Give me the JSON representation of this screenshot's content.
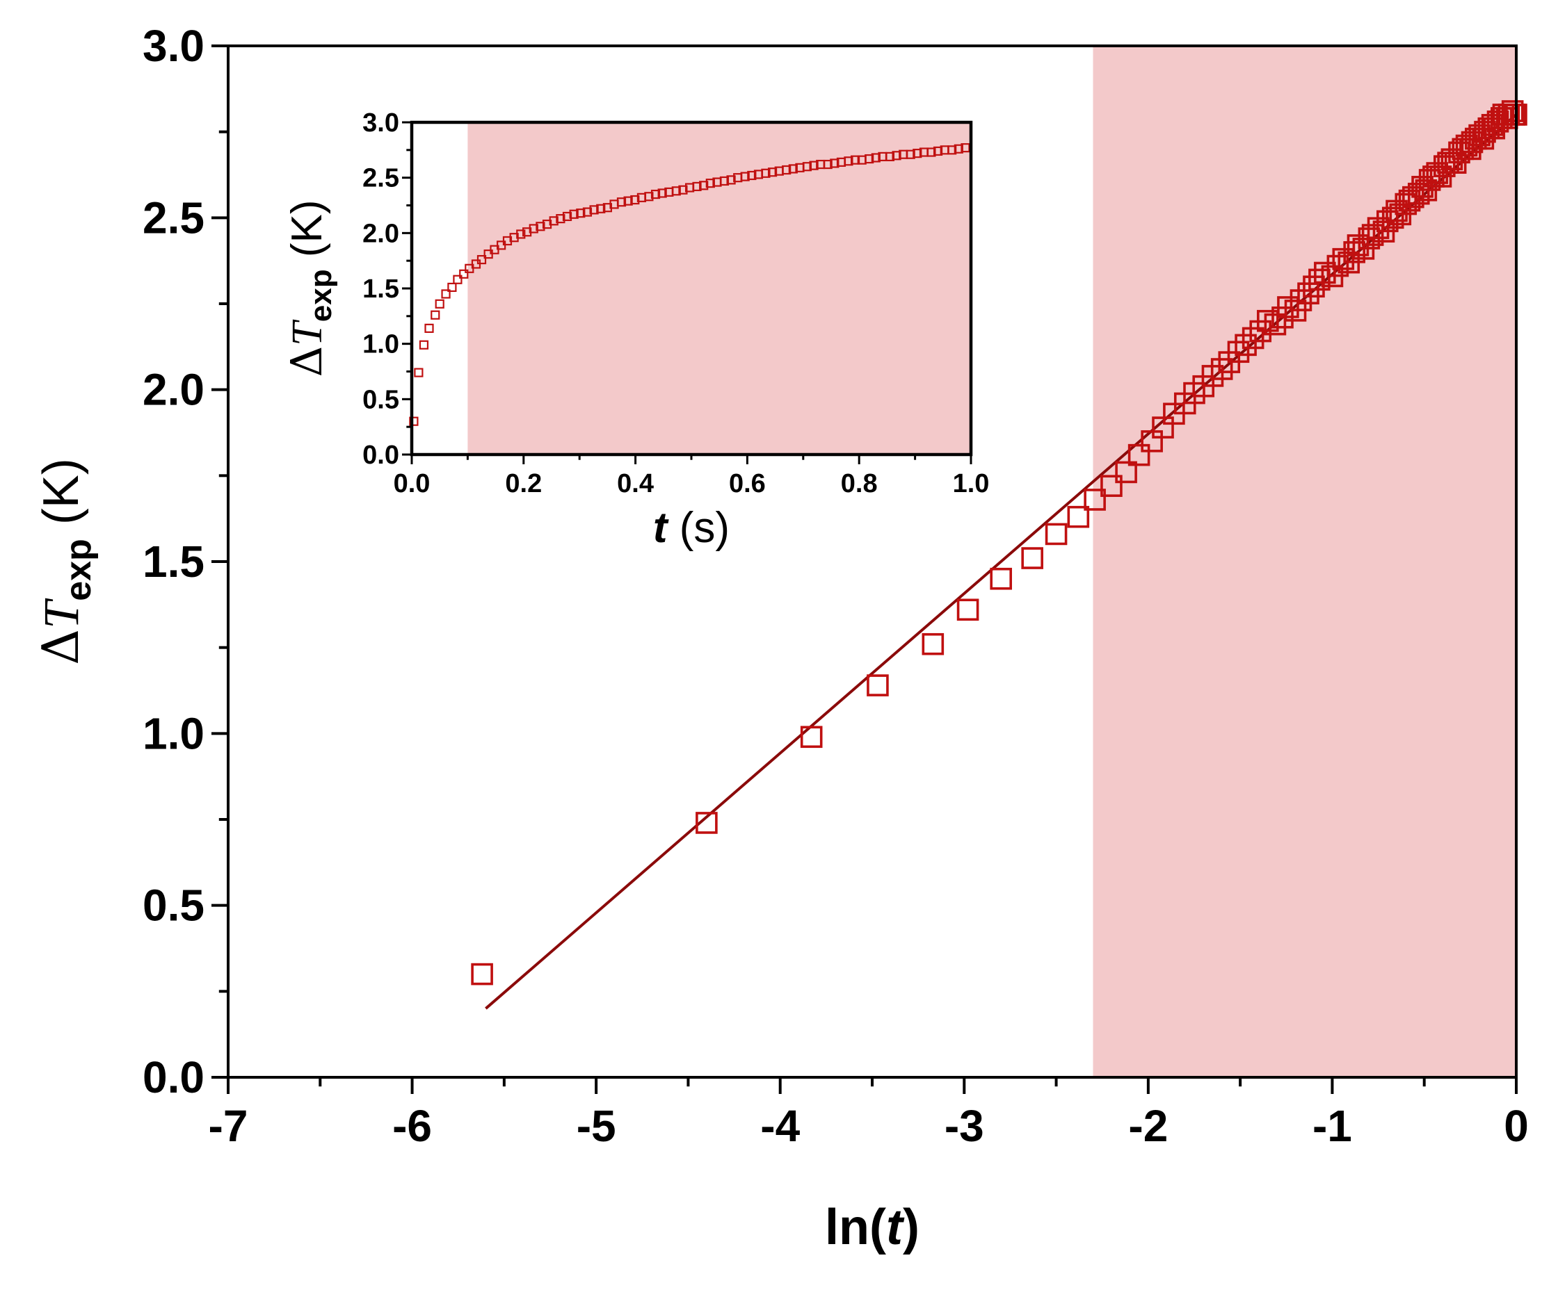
{
  "colors": {
    "marker": "#c01010",
    "fit_line": "#8b0a0a",
    "shade": "#f3c9ca",
    "axis": "#000000"
  },
  "chart_data": [
    {
      "type": "scatter",
      "panel": "main",
      "xlabel": {
        "prefix": "ln(",
        "italic": "t",
        "suffix": ")"
      },
      "ylabel": {
        "symbol": "Δ",
        "italic": "T",
        "subscript": "exp",
        "unit": " (K)"
      },
      "xlim": [
        -7,
        0
      ],
      "ylim": [
        0,
        3.0
      ],
      "xticks": [
        -7,
        -6,
        -5,
        -4,
        -3,
        -2,
        -1,
        0
      ],
      "xtick_labels": [
        "-7",
        "-6",
        "-5",
        "-4",
        "-3",
        "-2",
        "-1",
        "0"
      ],
      "yticks": [
        0,
        0.5,
        1.0,
        1.5,
        2.0,
        2.5,
        3.0
      ],
      "ytick_labels": [
        "0.0",
        "0.5",
        "1.0",
        "1.5",
        "2.0",
        "2.5",
        "3.0"
      ],
      "shaded_region_x": [
        -2.3,
        0
      ],
      "marker": "open-square",
      "x": [
        -5.62,
        -4.4,
        -3.83,
        -3.47,
        -3.17,
        -2.98,
        -2.8,
        -2.63,
        -2.5,
        -2.38,
        -2.29,
        -2.2,
        -2.12,
        -2.05,
        -1.98,
        -1.92,
        -1.86,
        -1.8,
        -1.75,
        -1.7,
        -1.65,
        -1.6,
        -1.56,
        -1.51,
        -1.47,
        -1.43,
        -1.39,
        -1.35,
        -1.31,
        -1.27,
        -1.24,
        -1.2,
        -1.17,
        -1.13,
        -1.1,
        -1.07,
        -1.04,
        -1.0,
        -0.97,
        -0.94,
        -0.91,
        -0.88,
        -0.86,
        -0.83,
        -0.8,
        -0.78,
        -0.75,
        -0.72,
        -0.7,
        -0.67,
        -0.65,
        -0.63,
        -0.6,
        -0.58,
        -0.56,
        -0.53,
        -0.51,
        -0.49,
        -0.47,
        -0.45,
        -0.43,
        -0.41,
        -0.39,
        -0.37,
        -0.35,
        -0.33,
        -0.31,
        -0.29,
        -0.27,
        -0.25,
        -0.24,
        -0.22,
        -0.2,
        -0.18,
        -0.17,
        -0.15,
        -0.13,
        -0.12,
        -0.1,
        -0.08,
        -0.07,
        -0.05,
        -0.04,
        -0.02,
        -0.01,
        0.0
      ],
      "y": [
        0.3,
        0.74,
        0.99,
        1.14,
        1.26,
        1.36,
        1.45,
        1.51,
        1.58,
        1.63,
        1.68,
        1.72,
        1.76,
        1.81,
        1.85,
        1.89,
        1.93,
        1.96,
        1.99,
        2.01,
        2.04,
        2.06,
        2.08,
        2.11,
        2.13,
        2.15,
        2.17,
        2.2,
        2.19,
        2.21,
        2.24,
        2.23,
        2.26,
        2.28,
        2.3,
        2.32,
        2.34,
        2.33,
        2.36,
        2.38,
        2.37,
        2.4,
        2.42,
        2.41,
        2.44,
        2.45,
        2.47,
        2.46,
        2.49,
        2.5,
        2.52,
        2.51,
        2.54,
        2.55,
        2.56,
        2.57,
        2.59,
        2.58,
        2.61,
        2.62,
        2.63,
        2.62,
        2.65,
        2.66,
        2.67,
        2.66,
        2.69,
        2.7,
        2.71,
        2.7,
        2.72,
        2.73,
        2.74,
        2.73,
        2.75,
        2.76,
        2.77,
        2.76,
        2.78,
        2.79,
        2.8,
        2.79,
        2.8,
        2.81,
        2.8,
        2.8
      ],
      "fit_line": {
        "x": [
          -5.6,
          0
        ],
        "y": [
          0.2,
          2.8
        ]
      }
    },
    {
      "type": "scatter",
      "panel": "inset",
      "xlabel": {
        "italic": "t",
        "unit": " (s)"
      },
      "ylabel": {
        "symbol": "Δ",
        "italic": "T",
        "subscript": "exp",
        "unit": " (K)"
      },
      "xlim": [
        0,
        1.0
      ],
      "ylim": [
        0,
        3.0
      ],
      "xticks": [
        0,
        0.2,
        0.4,
        0.6,
        0.8,
        1.0
      ],
      "xtick_labels": [
        "0.0",
        "0.2",
        "0.4",
        "0.6",
        "0.8",
        "1.0"
      ],
      "yticks": [
        0,
        0.5,
        1.0,
        1.5,
        2.0,
        2.5,
        3.0
      ],
      "ytick_labels": [
        "0.0",
        "0.5",
        "1.0",
        "1.5",
        "2.0",
        "2.5",
        "3.0"
      ],
      "shaded_region_x": [
        0.1,
        1.0
      ],
      "marker": "open-square",
      "x": [
        0.0036,
        0.0123,
        0.0217,
        0.0311,
        0.042,
        0.05,
        0.061,
        0.072,
        0.082,
        0.093,
        0.103,
        0.115,
        0.125,
        0.137,
        0.148,
        0.16,
        0.171,
        0.183,
        0.195,
        0.206,
        0.218,
        0.23,
        0.242,
        0.254,
        0.266,
        0.278,
        0.29,
        0.302,
        0.314,
        0.326,
        0.338,
        0.35,
        0.362,
        0.375,
        0.387,
        0.399,
        0.411,
        0.424,
        0.436,
        0.448,
        0.46,
        0.473,
        0.485,
        0.497,
        0.51,
        0.522,
        0.534,
        0.546,
        0.559,
        0.571,
        0.583,
        0.596,
        0.608,
        0.62,
        0.633,
        0.645,
        0.657,
        0.67,
        0.682,
        0.694,
        0.707,
        0.719,
        0.731,
        0.744,
        0.756,
        0.768,
        0.781,
        0.793,
        0.805,
        0.818,
        0.83,
        0.842,
        0.855,
        0.867,
        0.879,
        0.892,
        0.904,
        0.916,
        0.929,
        0.941,
        0.953,
        0.966,
        0.978,
        0.99
      ],
      "y": [
        0.3,
        0.74,
        0.99,
        1.14,
        1.26,
        1.36,
        1.45,
        1.51,
        1.58,
        1.63,
        1.68,
        1.72,
        1.76,
        1.81,
        1.85,
        1.89,
        1.93,
        1.96,
        1.99,
        2.01,
        2.04,
        2.06,
        2.08,
        2.11,
        2.13,
        2.15,
        2.17,
        2.18,
        2.19,
        2.21,
        2.22,
        2.23,
        2.26,
        2.28,
        2.29,
        2.3,
        2.32,
        2.33,
        2.35,
        2.36,
        2.37,
        2.38,
        2.39,
        2.41,
        2.42,
        2.43,
        2.45,
        2.46,
        2.47,
        2.48,
        2.5,
        2.51,
        2.52,
        2.53,
        2.54,
        2.55,
        2.56,
        2.57,
        2.58,
        2.59,
        2.6,
        2.61,
        2.62,
        2.62,
        2.63,
        2.64,
        2.65,
        2.66,
        2.66,
        2.67,
        2.68,
        2.69,
        2.69,
        2.7,
        2.71,
        2.71,
        2.72,
        2.73,
        2.73,
        2.74,
        2.75,
        2.75,
        2.76,
        2.77
      ]
    }
  ]
}
